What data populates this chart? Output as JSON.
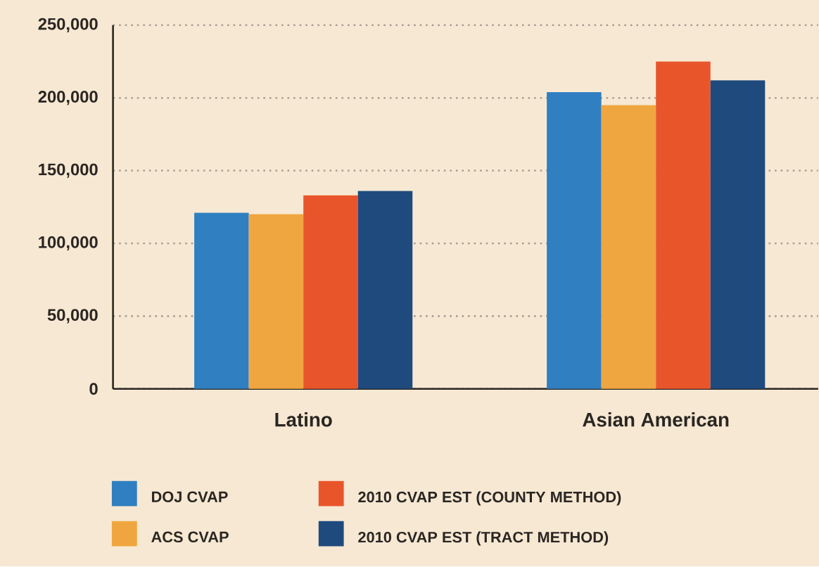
{
  "chart_data": {
    "type": "bar",
    "categories": [
      "Latino",
      "Asian American"
    ],
    "series": [
      {
        "name": "DOJ CVAP",
        "color": "#2f7fc1",
        "values": [
          121000,
          204000
        ]
      },
      {
        "name": "ACS CVAP",
        "color": "#f0a640",
        "values": [
          120000,
          195000
        ]
      },
      {
        "name": "2010 CVAP EST (COUNTY METHOD)",
        "color": "#e9552b",
        "values": [
          133000,
          225000
        ]
      },
      {
        "name": "2010 CVAP EST (TRACT METHOD)",
        "color": "#1f4a7e",
        "values": [
          136000,
          212000
        ]
      }
    ],
    "ylim": [
      0,
      250000
    ],
    "yticks": [
      0,
      {
        "value": 50000,
        "label": "50,000"
      },
      {
        "value": 100000,
        "label": "100,000"
      },
      {
        "value": 150000,
        "label": "150,000"
      },
      {
        "value": 200000,
        "label": "200,000"
      },
      {
        "value": 250000,
        "label": "250,000"
      }
    ],
    "grid": "y",
    "legend": "bottom"
  }
}
